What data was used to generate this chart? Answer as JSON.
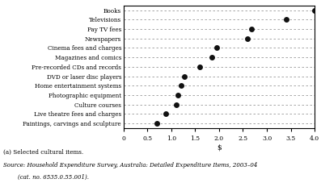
{
  "categories": [
    "Paintings, carvings and sculpture",
    "Live theatre fees and charges",
    "Culture courses",
    "Photographic equipment",
    "Home entertainment systems",
    "DVD or laser disc players",
    "Pre-recorded CDs and records",
    "Magazines and comics",
    "Cinema fees and charges",
    "Newspapers",
    "Pay TV fees",
    "Televisions",
    "Books"
  ],
  "values": [
    0.7,
    0.88,
    1.1,
    1.13,
    1.2,
    1.27,
    1.6,
    1.85,
    1.95,
    2.6,
    2.67,
    3.4,
    4.0
  ],
  "xlabel": "$",
  "xlim": [
    0,
    4.0
  ],
  "xticks": [
    0,
    0.5,
    1.0,
    1.5,
    2.0,
    2.5,
    3.0,
    3.5,
    4.0
  ],
  "xtick_labels": [
    "0",
    "0.5",
    "1.0",
    "1.5",
    "2.0",
    "2.5",
    "3.0",
    "3.5",
    "4.0"
  ],
  "marker_color": "#111111",
  "marker_size": 5,
  "grid_color": "#999999",
  "background_color": "#ffffff",
  "note1": "(a) Selected cultural items.",
  "note2": "Source: Household Expenditure Survey, Australia: Detailed Expenditure Items, 2003–04",
  "note3": "        (cat. no. 6535.0.55.001)."
}
